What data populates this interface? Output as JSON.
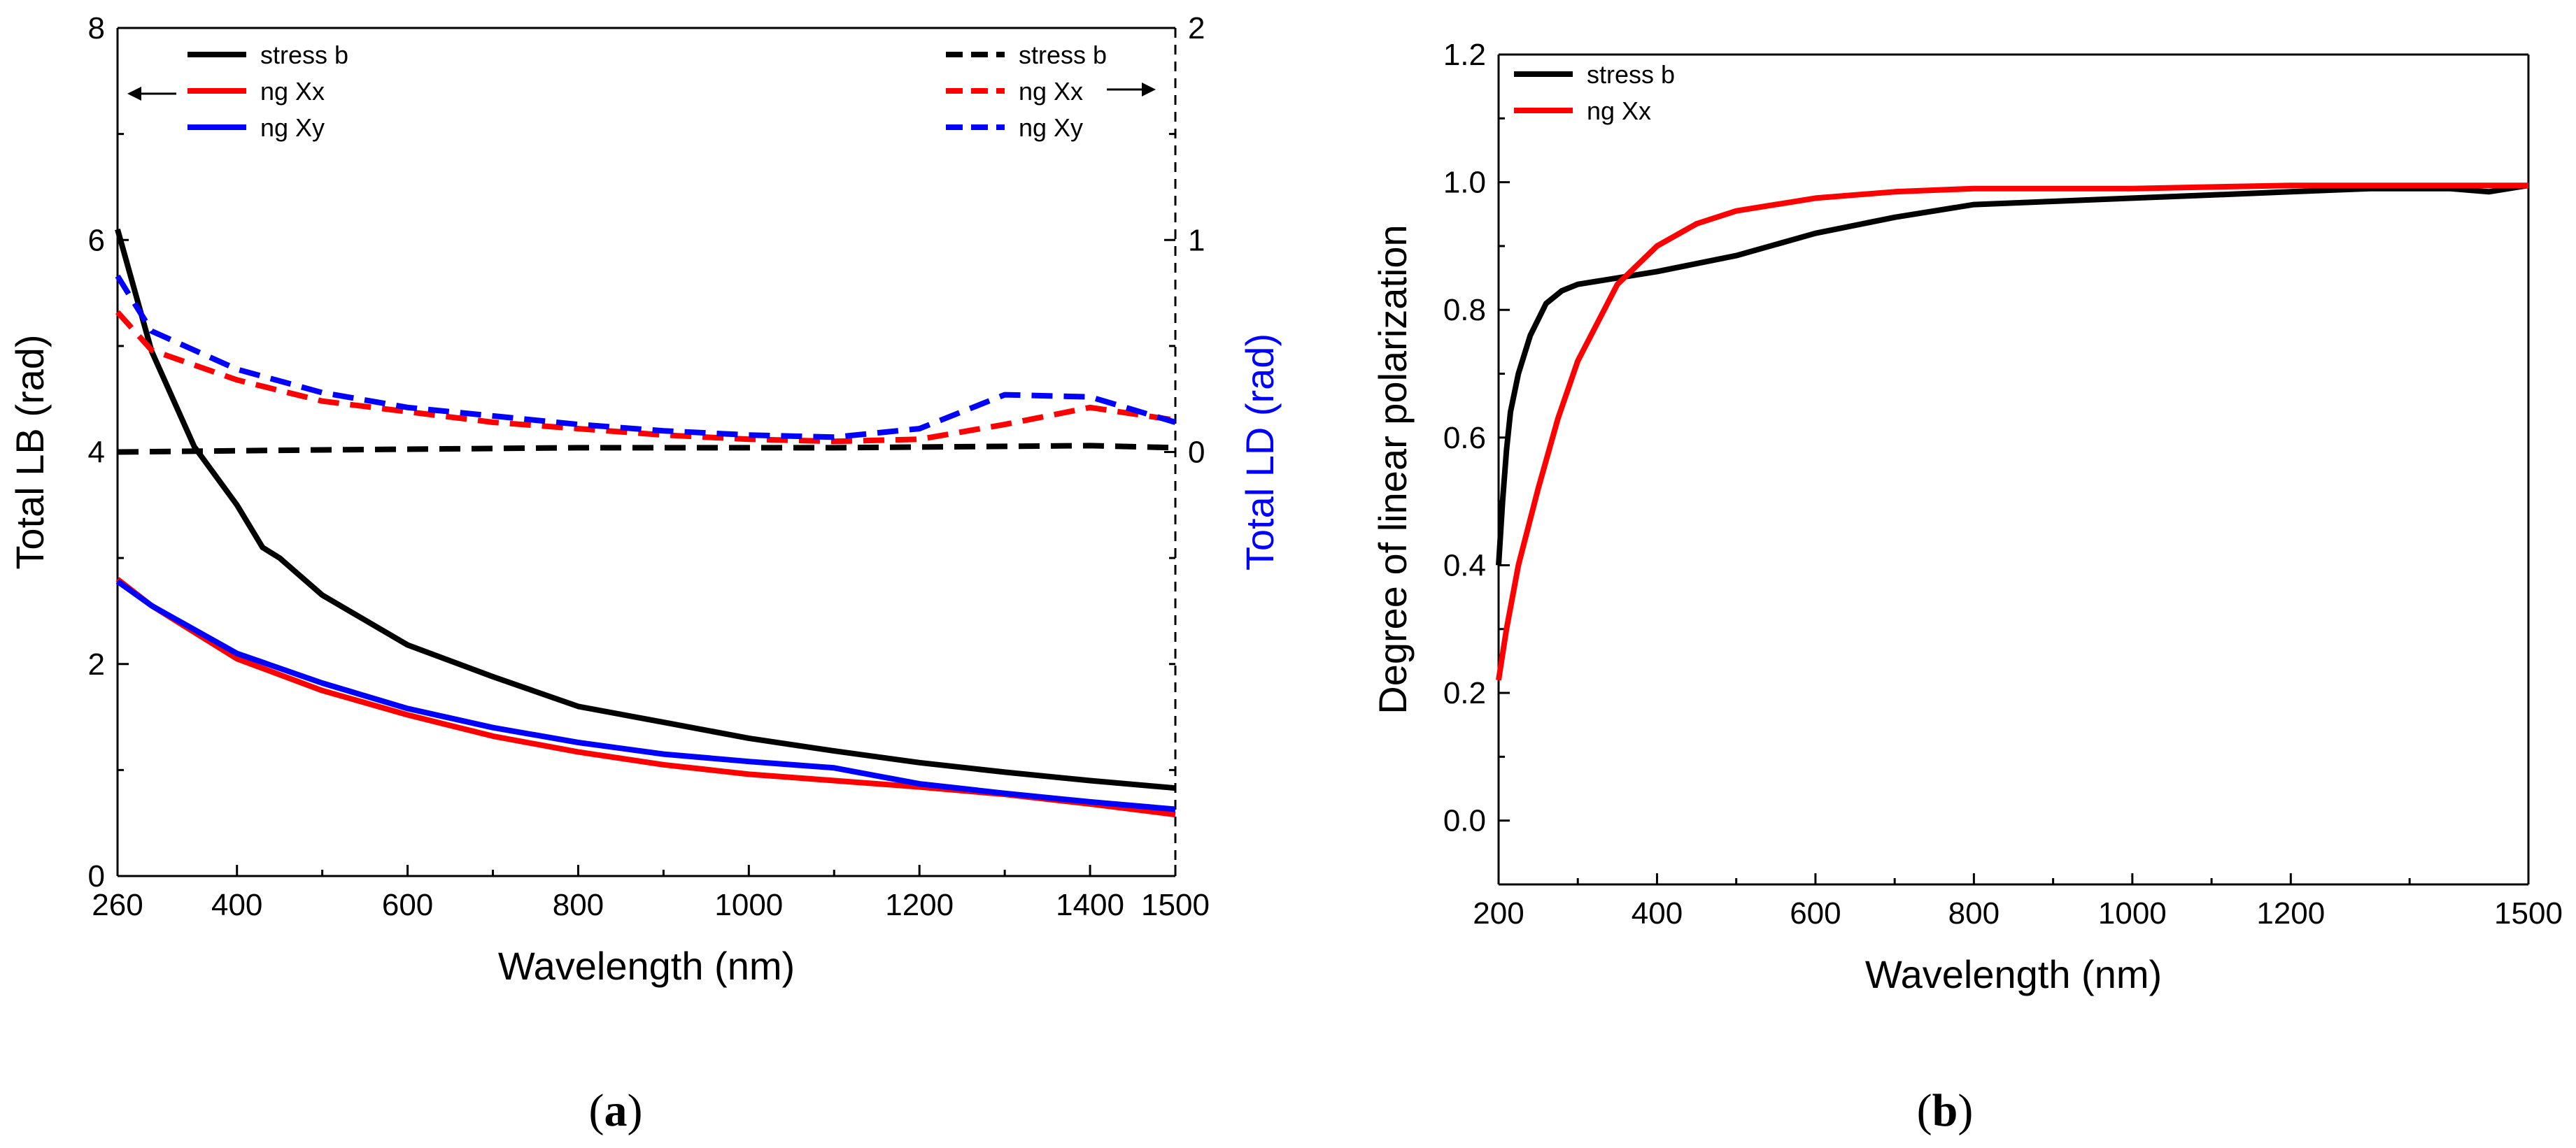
{
  "chart_data": [
    {
      "id": "a",
      "type": "line",
      "caption": {
        "open": "(",
        "letter": "a",
        "close": ")"
      },
      "xlabel": "Wavelength (nm)",
      "ylabel": "Total LB (rad)",
      "ylabel_right": "Total LD (rad)",
      "xlim": [
        260,
        1500
      ],
      "ylim": [
        0,
        8
      ],
      "ylim_right": [
        -2,
        2
      ],
      "x_ticks": [
        260,
        400,
        600,
        800,
        1000,
        1200,
        1400,
        1500
      ],
      "x_tick_labels": [
        "260",
        "400",
        "600",
        "800",
        "1000",
        "1200",
        "1400",
        "1500"
      ],
      "y_ticks": [
        0,
        2,
        4,
        6,
        8
      ],
      "y_tick_labels": [
        "0",
        "2",
        "4",
        "6",
        "8"
      ],
      "y_right_ticks": [
        0,
        1,
        2
      ],
      "y_right_tick_labels": [
        "0",
        "1",
        "2"
      ],
      "legend_left": [
        "stress b",
        "ng Xx",
        "ng Xy"
      ],
      "legend_right": [
        "stress b",
        "ng Xx",
        "ng Xy"
      ],
      "series": [
        {
          "name": "stress b",
          "axis": "left",
          "style": "solid",
          "color": "#000000",
          "x": [
            260,
            300,
            350,
            400,
            430,
            450,
            500,
            600,
            700,
            800,
            900,
            1000,
            1100,
            1200,
            1300,
            1400,
            1500
          ],
          "y": [
            6.1,
            4.95,
            4.05,
            3.5,
            3.1,
            3.0,
            2.65,
            2.18,
            1.88,
            1.6,
            1.45,
            1.3,
            1.18,
            1.07,
            0.98,
            0.9,
            0.83
          ]
        },
        {
          "name": "ng Xx",
          "axis": "left",
          "style": "solid",
          "color": "#ff0000",
          "x": [
            260,
            300,
            400,
            500,
            600,
            700,
            800,
            900,
            1000,
            1100,
            1200,
            1300,
            1400,
            1500
          ],
          "y": [
            2.8,
            2.55,
            2.05,
            1.75,
            1.52,
            1.32,
            1.17,
            1.05,
            0.96,
            0.9,
            0.84,
            0.77,
            0.68,
            0.58
          ]
        },
        {
          "name": "ng Xy",
          "axis": "left",
          "style": "solid",
          "color": "#0000ff",
          "x": [
            260,
            300,
            400,
            500,
            600,
            700,
            800,
            900,
            1000,
            1100,
            1200,
            1300,
            1400,
            1500
          ],
          "y": [
            2.78,
            2.55,
            2.1,
            1.82,
            1.58,
            1.4,
            1.26,
            1.15,
            1.08,
            1.02,
            0.87,
            0.78,
            0.7,
            0.63
          ]
        },
        {
          "name": "stress b",
          "axis": "right",
          "style": "dashed",
          "color": "#000000",
          "x": [
            260,
            500,
            800,
            1100,
            1400,
            1500
          ],
          "y": [
            0.0,
            0.01,
            0.02,
            0.02,
            0.03,
            0.02
          ]
        },
        {
          "name": "ng Xx",
          "axis": "right",
          "style": "dashed",
          "color": "#ff0000",
          "x": [
            260,
            300,
            400,
            500,
            600,
            700,
            800,
            900,
            1000,
            1100,
            1200,
            1300,
            1400,
            1500
          ],
          "y": [
            0.66,
            0.48,
            0.34,
            0.24,
            0.19,
            0.14,
            0.11,
            0.08,
            0.06,
            0.05,
            0.06,
            0.13,
            0.21,
            0.15
          ]
        },
        {
          "name": "ng Xy",
          "axis": "right",
          "style": "dashed",
          "color": "#0000ff",
          "x": [
            260,
            300,
            400,
            500,
            600,
            700,
            800,
            900,
            1000,
            1100,
            1200,
            1300,
            1400,
            1500
          ],
          "y": [
            0.83,
            0.57,
            0.39,
            0.28,
            0.21,
            0.17,
            0.13,
            0.1,
            0.08,
            0.07,
            0.11,
            0.27,
            0.26,
            0.14
          ]
        }
      ]
    },
    {
      "id": "b",
      "type": "line",
      "caption": {
        "open": "(",
        "letter": "b",
        "close": ")"
      },
      "xlabel": "Wavelength (nm)",
      "ylabel": "Degree of linear polarization",
      "xlim": [
        200,
        1500
      ],
      "ylim": [
        -0.1,
        1.2
      ],
      "x_ticks": [
        200,
        400,
        600,
        800,
        1000,
        1200,
        1500
      ],
      "x_tick_labels": [
        "200",
        "400",
        "600",
        "800",
        "1000",
        "1200",
        "1500"
      ],
      "y_ticks": [
        0.0,
        0.2,
        0.4,
        0.6,
        0.8,
        1.0,
        1.2
      ],
      "y_tick_labels": [
        "0.0",
        "0.2",
        "0.4",
        "0.6",
        "0.8",
        "1.0",
        "1.2"
      ],
      "legend": [
        "stress b",
        "ng Xx"
      ],
      "series": [
        {
          "name": "stress b",
          "style": "solid",
          "color": "#000000",
          "x": [
            200,
            205,
            210,
            215,
            225,
            240,
            260,
            280,
            300,
            350,
            400,
            500,
            600,
            700,
            800,
            900,
            1000,
            1100,
            1200,
            1300,
            1400,
            1450,
            1500
          ],
          "y": [
            0.4,
            0.5,
            0.58,
            0.64,
            0.7,
            0.76,
            0.81,
            0.83,
            0.84,
            0.85,
            0.86,
            0.885,
            0.92,
            0.945,
            0.965,
            0.97,
            0.975,
            0.98,
            0.985,
            0.99,
            0.99,
            0.985,
            0.995
          ]
        },
        {
          "name": "ng Xx",
          "style": "solid",
          "color": "#ff0000",
          "x": [
            200,
            210,
            225,
            250,
            275,
            300,
            350,
            400,
            450,
            500,
            600,
            700,
            800,
            900,
            1000,
            1200,
            1500
          ],
          "y": [
            0.22,
            0.3,
            0.4,
            0.52,
            0.63,
            0.72,
            0.84,
            0.9,
            0.935,
            0.955,
            0.975,
            0.985,
            0.99,
            0.99,
            0.99,
            0.995,
            0.995
          ]
        }
      ]
    }
  ]
}
